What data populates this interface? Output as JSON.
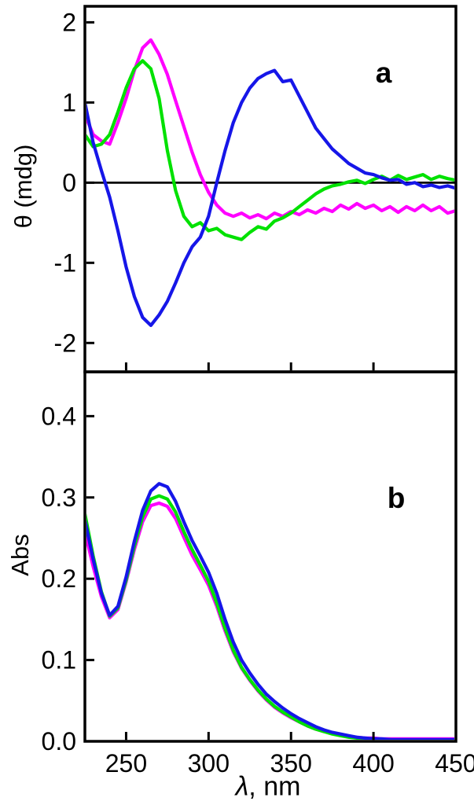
{
  "figure": {
    "background_color": "#ffffff",
    "frame_color": "#000000",
    "panel_a": {
      "letter": "a",
      "ylabel": "θ (mdg)"
    },
    "panel_b": {
      "letter": "b",
      "ylabel": "Abs"
    },
    "xlabel_lambda": "λ",
    "xlabel_rest": ", nm"
  },
  "chart_data": [
    {
      "id": "a",
      "type": "line",
      "panel_label": "a",
      "ylabel": "θ (mdg)",
      "xlabel": "λ, nm",
      "xlim": [
        225,
        450
      ],
      "ylim": [
        -2.36,
        2.2
      ],
      "x_start": 225,
      "x_step": 5,
      "xticks": [
        250,
        300,
        350,
        400
      ],
      "ytick_values": [
        2,
        1,
        0,
        -1,
        -2
      ],
      "ytick_labels": [
        "2",
        "1",
        "0",
        "-1",
        "-2"
      ],
      "zero_line": 0,
      "grid": false,
      "legend": "none",
      "series": [
        {
          "name": "magenta-spectrum",
          "color": "#ff00ff",
          "values": [
            0.85,
            0.6,
            0.52,
            0.48,
            0.75,
            1.05,
            1.4,
            1.68,
            1.78,
            1.6,
            1.35,
            1.02,
            0.7,
            0.38,
            0.1,
            -0.12,
            -0.28,
            -0.38,
            -0.42,
            -0.38,
            -0.44,
            -0.4,
            -0.45,
            -0.38,
            -0.42,
            -0.36,
            -0.4,
            -0.34,
            -0.38,
            -0.32,
            -0.36,
            -0.28,
            -0.33,
            -0.26,
            -0.32,
            -0.28,
            -0.35,
            -0.3,
            -0.37,
            -0.3,
            -0.35,
            -0.28,
            -0.35,
            -0.3,
            -0.38,
            -0.35
          ]
        },
        {
          "name": "green-spectrum",
          "color": "#00e100",
          "values": [
            0.6,
            0.45,
            0.48,
            0.6,
            0.88,
            1.18,
            1.42,
            1.52,
            1.42,
            1.05,
            0.4,
            -0.1,
            -0.42,
            -0.55,
            -0.5,
            -0.6,
            -0.57,
            -0.65,
            -0.68,
            -0.71,
            -0.62,
            -0.55,
            -0.58,
            -0.48,
            -0.44,
            -0.38,
            -0.3,
            -0.22,
            -0.14,
            -0.08,
            -0.04,
            -0.02,
            0.01,
            0.03,
            -0.01,
            0.04,
            0.08,
            0.03,
            0.09,
            0.04,
            0.07,
            0.1,
            0.04,
            0.08,
            0.05,
            0.03
          ]
        },
        {
          "name": "blue-spectrum",
          "color": "#1616e8",
          "values": [
            1.0,
            0.5,
            0.15,
            -0.18,
            -0.6,
            -1.05,
            -1.42,
            -1.68,
            -1.78,
            -1.65,
            -1.48,
            -1.25,
            -1.0,
            -0.8,
            -0.68,
            -0.42,
            0.0,
            0.4,
            0.75,
            1.0,
            1.18,
            1.3,
            1.36,
            1.4,
            1.26,
            1.28,
            1.08,
            0.88,
            0.68,
            0.55,
            0.42,
            0.33,
            0.24,
            0.18,
            0.12,
            0.1,
            0.06,
            0.03,
            0.04,
            -0.02,
            0.0,
            -0.05,
            -0.03,
            -0.06,
            -0.04,
            -0.07
          ]
        }
      ]
    },
    {
      "id": "b",
      "type": "line",
      "panel_label": "b",
      "ylabel": "Abs",
      "xlabel": "λ, nm",
      "xlim": [
        225,
        450
      ],
      "ylim": [
        0,
        0.4545
      ],
      "x_start": 225,
      "x_step": 5,
      "xticks": [
        250,
        300,
        350,
        400
      ],
      "ytick_values": [
        0.4,
        0.3,
        0.2,
        0.1,
        0.0
      ],
      "ytick_labels": [
        "0.4",
        "0.3",
        "0.2",
        "0.1",
        "0.0"
      ],
      "xtick_label_values": [
        250,
        300,
        350,
        400,
        450
      ],
      "xtick_labels": [
        "250",
        "300",
        "350",
        "400",
        "450"
      ],
      "grid": false,
      "legend": "none",
      "series": [
        {
          "name": "magenta-spectrum",
          "color": "#ff00ff",
          "values": [
            0.258,
            0.215,
            0.178,
            0.152,
            0.162,
            0.196,
            0.236,
            0.27,
            0.29,
            0.293,
            0.289,
            0.274,
            0.251,
            0.229,
            0.211,
            0.192,
            0.166,
            0.136,
            0.11,
            0.09,
            0.075,
            0.062,
            0.051,
            0.042,
            0.035,
            0.029,
            0.024,
            0.019,
            0.015,
            0.012,
            0.01,
            0.008,
            0.006,
            0.005,
            0.004,
            0.004,
            0.003,
            0.003,
            0.003,
            0.003,
            0.003,
            0.003,
            0.003,
            0.003,
            0.003,
            0.003
          ]
        },
        {
          "name": "green-spectrum",
          "color": "#00e100",
          "values": [
            0.28,
            0.228,
            0.184,
            0.154,
            0.164,
            0.198,
            0.24,
            0.276,
            0.298,
            0.302,
            0.298,
            0.282,
            0.258,
            0.236,
            0.217,
            0.197,
            0.17,
            0.139,
            0.112,
            0.091,
            0.076,
            0.063,
            0.052,
            0.043,
            0.036,
            0.03,
            0.024,
            0.019,
            0.015,
            0.012,
            0.009,
            0.007,
            0.005,
            0.004,
            0.003,
            0.002,
            0.002,
            0.002,
            0.001,
            0.001,
            0.001,
            0.001,
            0.001,
            0.001,
            0.001,
            0.001
          ]
        },
        {
          "name": "blue-spectrum",
          "color": "#1616e8",
          "values": [
            0.272,
            0.224,
            0.182,
            0.155,
            0.166,
            0.202,
            0.246,
            0.284,
            0.308,
            0.317,
            0.313,
            0.295,
            0.27,
            0.247,
            0.228,
            0.208,
            0.182,
            0.15,
            0.122,
            0.1,
            0.084,
            0.07,
            0.058,
            0.049,
            0.041,
            0.034,
            0.028,
            0.023,
            0.018,
            0.014,
            0.011,
            0.009,
            0.007,
            0.005,
            0.004,
            0.003,
            0.003,
            0.002,
            0.002,
            0.002,
            0.002,
            0.002,
            0.002,
            0.002,
            0.002,
            0.002
          ]
        }
      ]
    }
  ]
}
